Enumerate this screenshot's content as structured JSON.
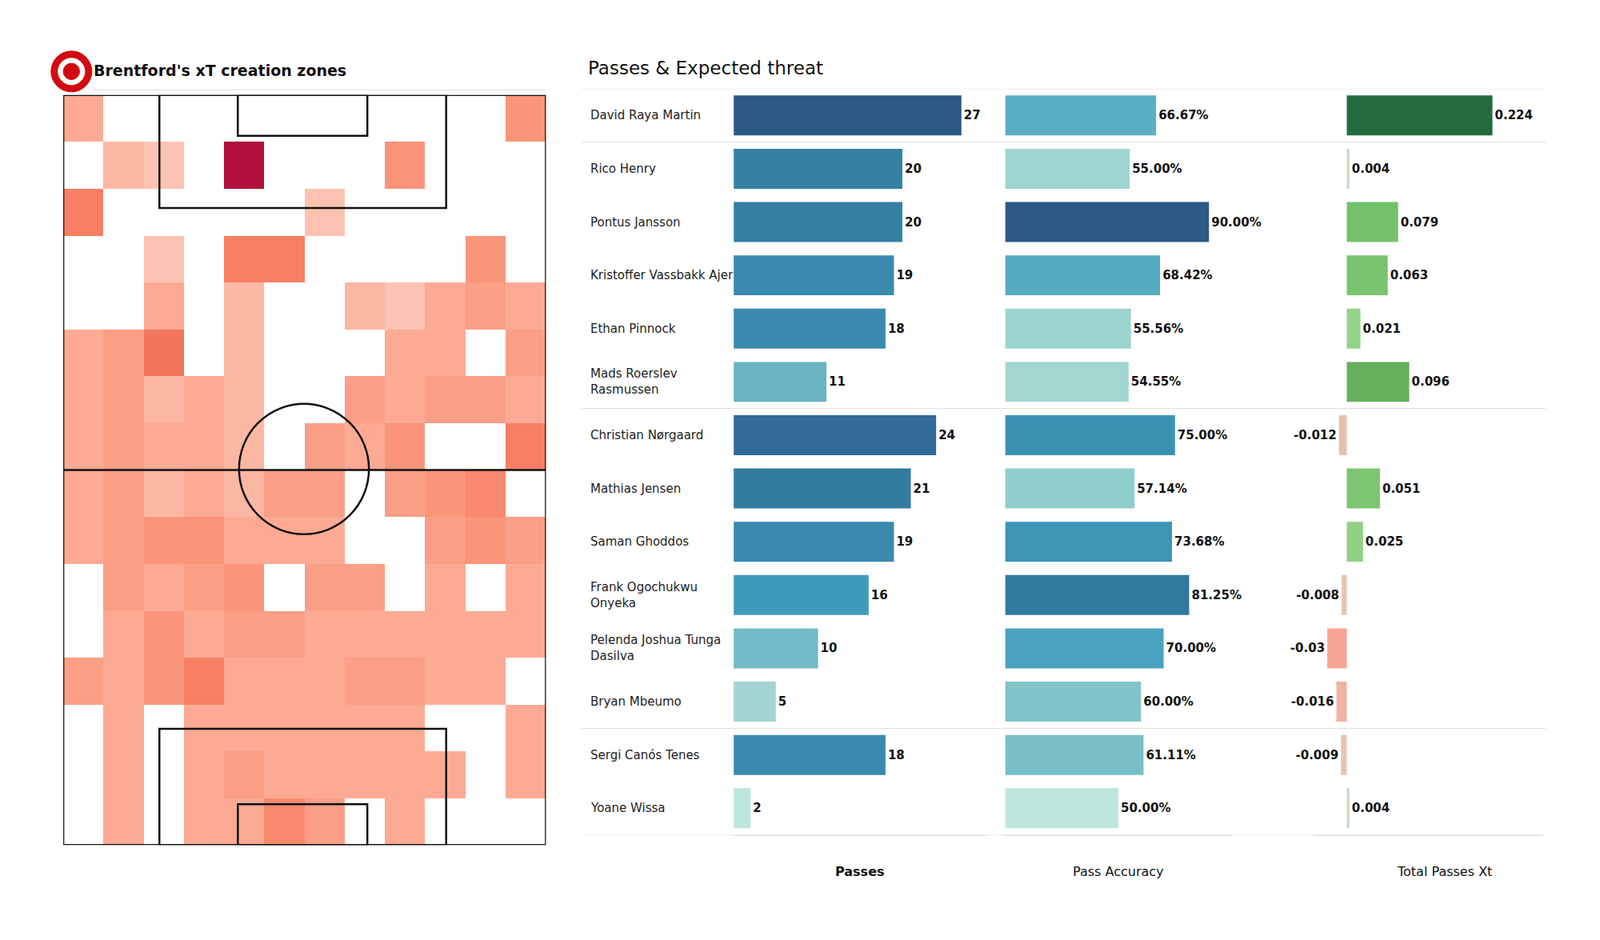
{
  "chart_data": [
    {
      "type": "heatmap",
      "title": "Brentford's xT creation zones",
      "zlim": [
        0,
        1
      ],
      "tick_labels": false,
      "cells": [
        [
          0.3,
          0,
          0,
          0,
          0,
          0,
          0,
          0,
          0,
          0,
          0,
          0.4
        ],
        [
          0,
          0.25,
          0.2,
          0,
          1,
          0,
          0,
          0,
          0.4,
          0,
          0,
          0
        ],
        [
          0.5,
          0,
          0,
          0,
          0,
          0,
          0.2,
          0,
          0,
          0,
          0,
          0
        ],
        [
          0,
          0,
          0.2,
          0,
          0.5,
          0.5,
          0,
          0,
          0,
          0,
          0.4,
          0
        ],
        [
          0,
          0,
          0.3,
          0,
          0.25,
          0,
          0,
          0.25,
          0.2,
          0.3,
          0.35,
          0.3
        ],
        [
          0.3,
          0.35,
          0.55,
          0,
          0.25,
          0,
          0,
          0,
          0.3,
          0.3,
          0,
          0.35
        ],
        [
          0.3,
          0.35,
          0.25,
          0.3,
          0.25,
          0,
          0,
          0.35,
          0.3,
          0.35,
          0.35,
          0.3
        ],
        [
          0.3,
          0.35,
          0.3,
          0.3,
          0.25,
          0,
          0.35,
          0.3,
          0.4,
          0,
          0,
          0.5
        ],
        [
          0.3,
          0.35,
          0.25,
          0.3,
          0.25,
          0.35,
          0.35,
          0,
          0.35,
          0.4,
          0.45,
          0
        ],
        [
          0.3,
          0.35,
          0.4,
          0.4,
          0.3,
          0.3,
          0.3,
          0,
          0,
          0.35,
          0.4,
          0.35
        ],
        [
          0,
          0.35,
          0.3,
          0.35,
          0.4,
          0,
          0.35,
          0.35,
          0,
          0.3,
          0,
          0.3
        ],
        [
          0,
          0.3,
          0.4,
          0.3,
          0.35,
          0.35,
          0.3,
          0.3,
          0.3,
          0.3,
          0.3,
          0.3
        ],
        [
          0.35,
          0.3,
          0.4,
          0.5,
          0.3,
          0.3,
          0.3,
          0.35,
          0.35,
          0.3,
          0.3,
          0
        ],
        [
          0,
          0.3,
          0,
          0.3,
          0.3,
          0.3,
          0.3,
          0.3,
          0.3,
          0,
          0,
          0.3
        ],
        [
          0,
          0.3,
          0,
          0.3,
          0.35,
          0.3,
          0.3,
          0.3,
          0.3,
          0.3,
          0,
          0.3
        ],
        [
          0,
          0.3,
          0,
          0.3,
          0.3,
          0.45,
          0.35,
          0,
          0.3,
          0,
          0,
          0
        ]
      ]
    },
    {
      "type": "bar",
      "orientation": "horizontal",
      "title": "Passes & Expected threat",
      "data_labels": true,
      "tick_labels": false,
      "groups": [
        [
          "David Raya Martin"
        ],
        [
          "Rico Henry",
          "Pontus Jansson",
          "Kristoffer Vassbakk Ajer",
          "Ethan Pinnock",
          "Mads Roerslev\nRasmussen"
        ],
        [
          "Christian Nørgaard",
          "Mathias Jensen",
          "Saman Ghoddos",
          "Frank Ogochukwu\nOnyeka",
          "Pelenda Joshua Tunga\nDasilva",
          "Bryan Mbeumo"
        ],
        [
          "Sergi Canós Tenes",
          "Yoane Wissa"
        ]
      ],
      "panels": [
        {
          "name": "Passes",
          "xlim": [
            0,
            30
          ],
          "values": [
            27,
            20,
            20,
            19,
            18,
            11,
            24,
            21,
            19,
            16,
            10,
            5,
            18,
            2
          ],
          "colors": [
            "#2c5985",
            "#3680a5",
            "#3580a5",
            "#3a89ae",
            "#3a8ab0",
            "#6ab3c3",
            "#326a98",
            "#337a9f",
            "#3a89ae",
            "#3e9bbb",
            "#71bac8",
            "#a3d4d3",
            "#3a8ab0",
            "#bde6dc"
          ]
        },
        {
          "name": "Pass Accuracy",
          "xlim": [
            0,
            100
          ],
          "values": [
            66.67,
            55.0,
            90.0,
            68.42,
            55.56,
            54.55,
            75.0,
            57.14,
            73.68,
            81.25,
            70.0,
            60.0,
            61.11,
            50.0
          ],
          "value_labels": [
            "66.67%",
            "55.00%",
            "90.00%",
            "68.42%",
            "55.56%",
            "54.55%",
            "75.00%",
            "57.14%",
            "73.68%",
            "81.25%",
            "70.00%",
            "60.00%",
            "61.11%",
            "50.00%"
          ],
          "colors": [
            "#5aafc3",
            "#9ed5d0",
            "#2c5985",
            "#55abc2",
            "#9bd3cf",
            "#a1d6d1",
            "#3a92b3",
            "#90cdcd",
            "#3d96b5",
            "#327aa0",
            "#4aa3be",
            "#80c3c8",
            "#78bfc7",
            "#bde6dc"
          ]
        },
        {
          "name": "Total Passes Xt",
          "xlim": [
            -0.05,
            0.3
          ],
          "values": [
            0.224,
            0.004,
            0.079,
            0.063,
            0.021,
            0.096,
            -0.012,
            0.051,
            0.025,
            -0.008,
            -0.03,
            -0.016,
            -0.009,
            0.004
          ],
          "colors": [
            "#226b3c",
            "#c5d8c5",
            "#73c26a",
            "#79c46f",
            "#95d38a",
            "#64b05c",
            "#e8bfae",
            "#7dc671",
            "#90d186",
            "#e5c7b9",
            "#f6a493",
            "#f0b3a2",
            "#e8c4b4",
            "#c5d8c5"
          ]
        }
      ]
    }
  ]
}
